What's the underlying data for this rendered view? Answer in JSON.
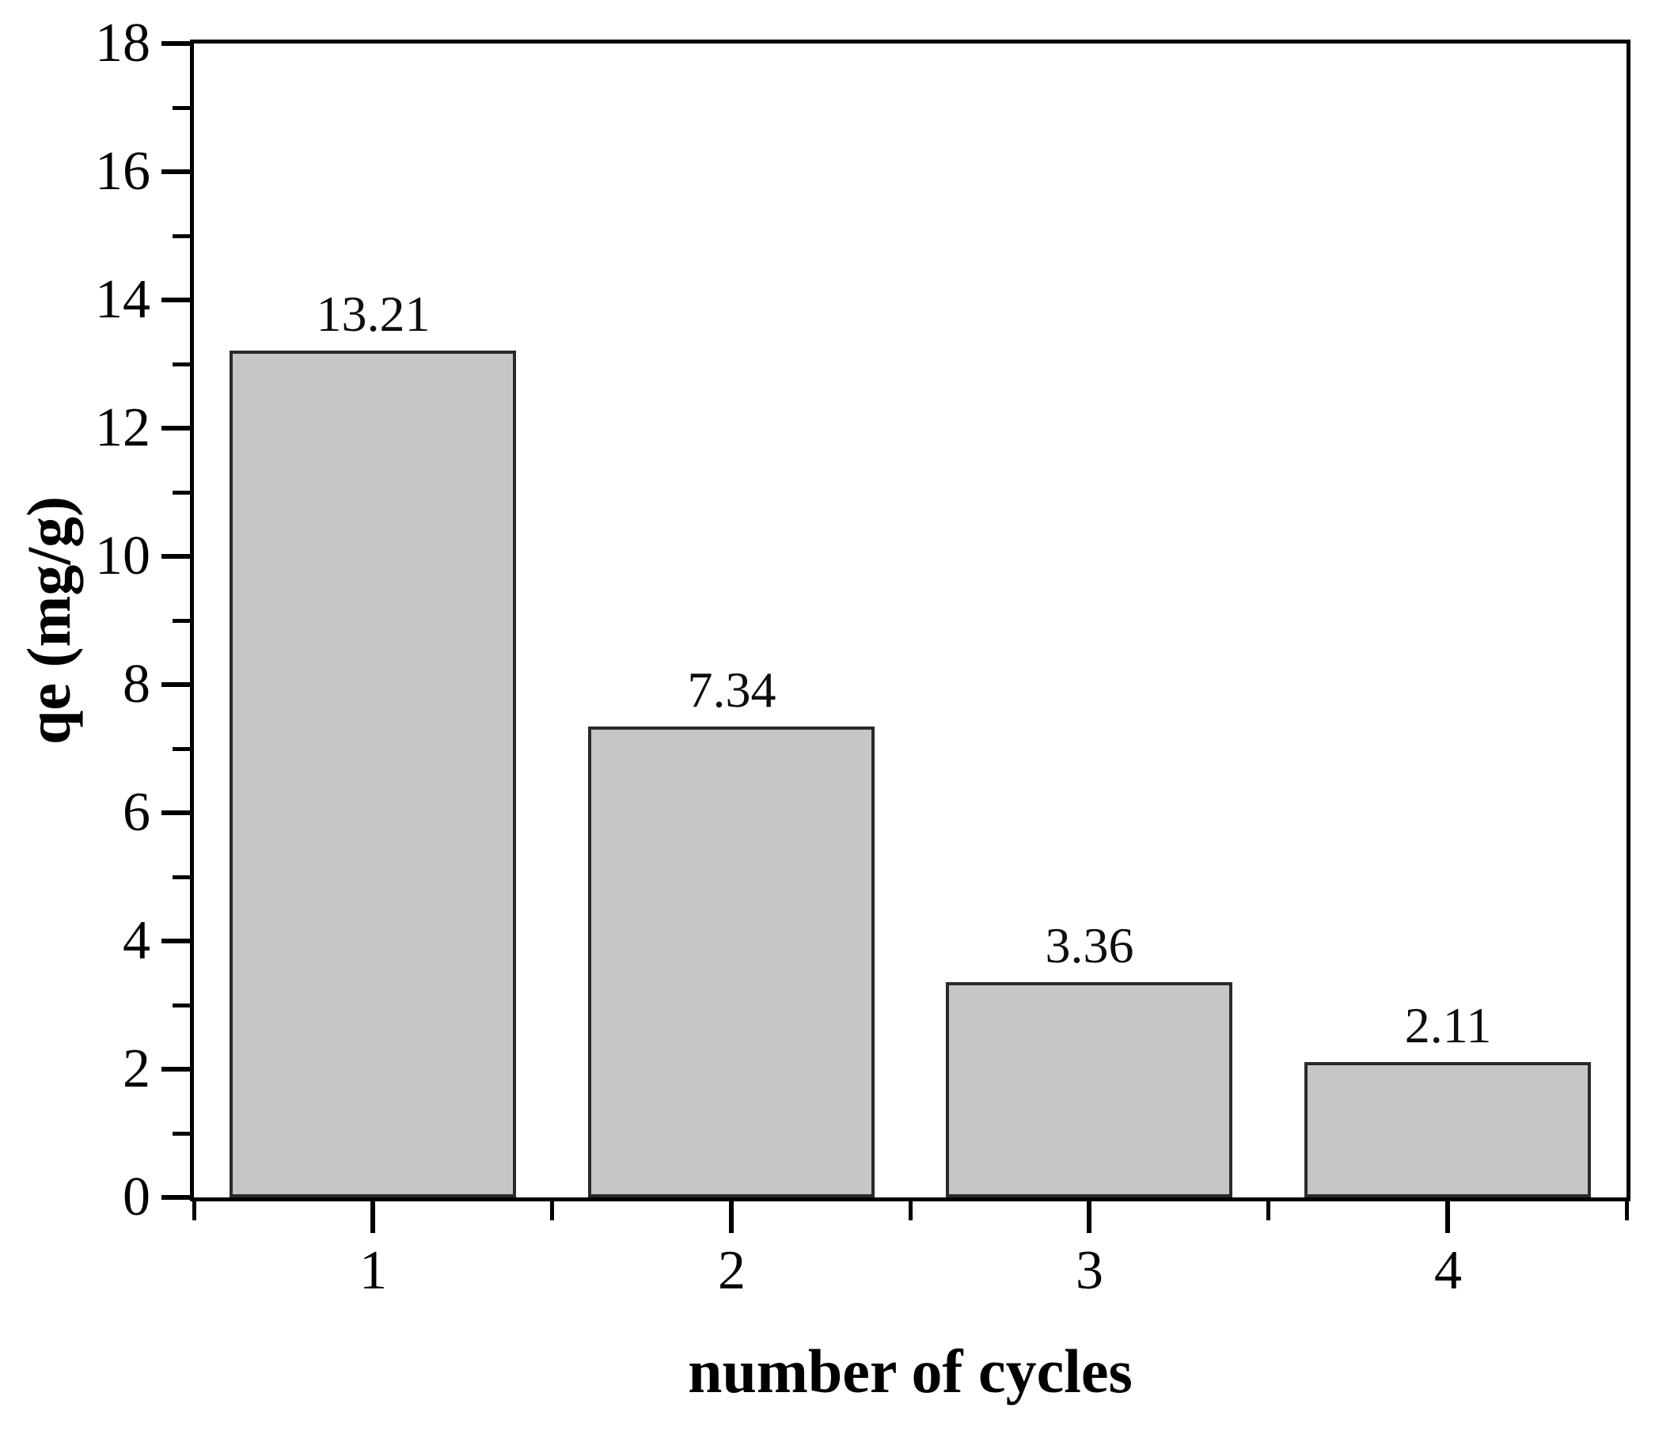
{
  "figure": {
    "background": "#ffffff"
  },
  "chart_data": {
    "type": "bar",
    "title": "",
    "xlabel": "number of cycles",
    "ylabel": "qe (mg/g)",
    "categories": [
      "1",
      "2",
      "3",
      "4"
    ],
    "values": [
      13.21,
      7.34,
      3.36,
      2.11
    ],
    "bar_value_labels": [
      "13.21",
      "7.34",
      "3.36",
      "2.11"
    ],
    "ylim": [
      0,
      18
    ],
    "y_major_ticks": [
      0,
      2,
      4,
      6,
      8,
      10,
      12,
      14,
      16,
      18
    ],
    "y_minor_ticks": [
      1,
      3,
      5,
      7,
      9,
      11,
      13,
      15,
      17
    ],
    "x_minor_tick_positions": [
      0,
      1,
      2,
      3,
      4
    ],
    "grid": false,
    "legend": "none",
    "frame": true,
    "tick_direction": "out",
    "colors": {
      "bar_fill": "#c6c6c6",
      "bar_border": "#2a2a2a",
      "axis": "#000000",
      "text": "#000000"
    }
  }
}
